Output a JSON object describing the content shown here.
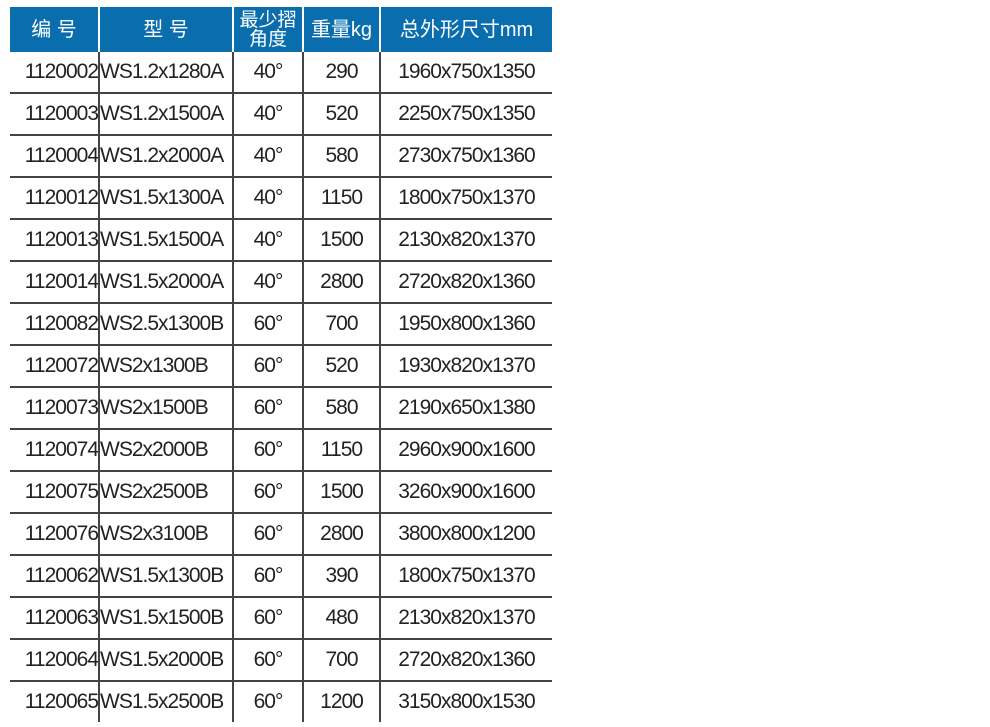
{
  "headers": [
    "编 号",
    "型 号",
    "最少摺角度",
    "重量kg",
    "总外形尺寸mm"
  ],
  "header_lines_col3": [
    "最少摺",
    "角度"
  ],
  "header_color": "#0a6eae",
  "rows": [
    [
      "1120002",
      "WS1.2x1280A",
      "40°",
      "290",
      "1960x750x1350"
    ],
    [
      "1120003",
      "WS1.2x1500A",
      "40°",
      "520",
      "2250x750x1350"
    ],
    [
      "1120004",
      "WS1.2x2000A",
      "40°",
      "580",
      "2730x750x1360"
    ],
    [
      "1120012",
      "WS1.5x1300A",
      "40°",
      "1150",
      "1800x750x1370"
    ],
    [
      "1120013",
      "WS1.5x1500A",
      "40°",
      "1500",
      "2130x820x1370"
    ],
    [
      "1120014",
      "WS1.5x2000A",
      "40°",
      "2800",
      "2720x820x1360"
    ],
    [
      "1120082",
      "WS2.5x1300B",
      "60°",
      "700",
      "1950x800x1360"
    ],
    [
      "1120072",
      "WS2x1300B",
      "60°",
      "520",
      "1930x820x1370"
    ],
    [
      "1120073",
      "WS2x1500B",
      "60°",
      "580",
      "2190x650x1380"
    ],
    [
      "1120074",
      "WS2x2000B",
      "60°",
      "1150",
      "2960x900x1600"
    ],
    [
      "1120075",
      "WS2x2500B",
      "60°",
      "1500",
      "3260x900x1600"
    ],
    [
      "1120076",
      "WS2x3100B",
      "60°",
      "2800",
      "3800x800x1200"
    ],
    [
      "1120062",
      "WS1.5x1300B",
      "60°",
      "390",
      "1800x750x1370"
    ],
    [
      "1120063",
      "WS1.5x1500B",
      "60°",
      "480",
      "2130x820x1370"
    ],
    [
      "1120064",
      "WS1.5x2000B",
      "60°",
      "700",
      "2720x820x1360"
    ],
    [
      "1120065",
      "WS1.5x2500B",
      "60°",
      "1200",
      "3150x800x1530"
    ]
  ]
}
